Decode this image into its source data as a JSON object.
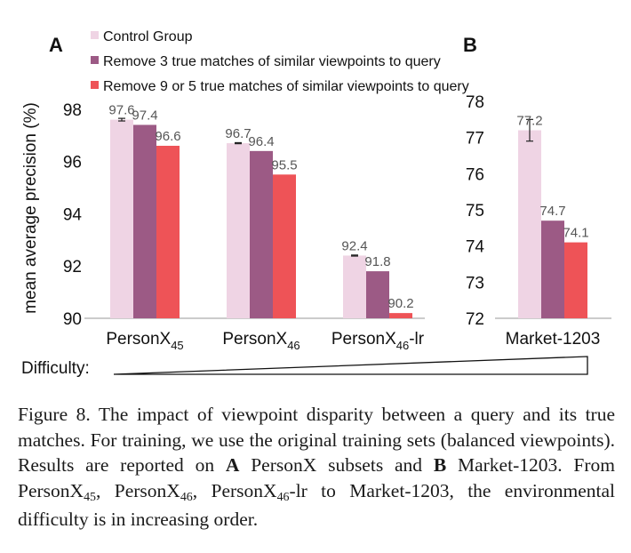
{
  "colors": {
    "control": "#efd4e4",
    "remove3": "#9c5a85",
    "remove9": "#ee5357",
    "axis": "#999999",
    "text": "#111111",
    "value_label": "#555555"
  },
  "legend": {
    "items": [
      "Control Group",
      "Remove 3 true matches of similar viewpoints to query",
      "Remove 9 or 5 true matches of similar viewpoints to query"
    ]
  },
  "y_axis_label": "mean average precision (%)",
  "difficulty_label": "Difficulty:",
  "chart_data": [
    {
      "type": "bar",
      "panel_label": "A",
      "categories": [
        {
          "base": "PersonX",
          "sub": "45",
          "suffix": ""
        },
        {
          "base": "PersonX",
          "sub": "46",
          "suffix": ""
        },
        {
          "base": "PersonX",
          "sub": "46",
          "suffix": "-lr"
        }
      ],
      "series": [
        {
          "name": "Control Group",
          "values": [
            97.6,
            96.7,
            92.4
          ],
          "labels": [
            "97.6",
            "96.7",
            "92.4"
          ],
          "err": [
            0.05,
            0.02,
            0.02
          ]
        },
        {
          "name": "Remove 3 true matches of similar viewpoints to query",
          "values": [
            97.4,
            96.4,
            91.8
          ],
          "labels": [
            "97.4",
            "96.4",
            "91.8"
          ]
        },
        {
          "name": "Remove 9 or 5 true matches of similar viewpoints to query",
          "values": [
            96.6,
            95.5,
            90.2
          ],
          "labels": [
            "96.6",
            "95.5",
            "90.2"
          ]
        }
      ],
      "ylim": [
        90,
        98.3
      ],
      "yticks": [
        "90",
        "92",
        "94",
        "96",
        "98"
      ]
    },
    {
      "type": "bar",
      "panel_label": "B",
      "categories": [
        {
          "base": "Market-1203",
          "sub": "",
          "suffix": ""
        }
      ],
      "series": [
        {
          "name": "Control Group",
          "values": [
            77.2
          ],
          "labels": [
            "77.2"
          ],
          "err": [
            0.3
          ]
        },
        {
          "name": "Remove 3 true matches of similar viewpoints to query",
          "values": [
            74.7
          ],
          "labels": [
            "74.7"
          ]
        },
        {
          "name": "Remove 9 or 5 true matches of similar viewpoints to query",
          "values": [
            74.1
          ],
          "labels": [
            "74.1"
          ]
        }
      ],
      "ylim": [
        72,
        78
      ],
      "yticks": [
        "72",
        "73",
        "74",
        "75",
        "76",
        "77",
        "78"
      ]
    }
  ],
  "caption": {
    "fig_label": "Figure 8.",
    "t1": " The impact of viewpoint disparity between a query and its true matches.  For training, we use the original training sets (balanced viewpoints). Results are reported on ",
    "b1": "A",
    "t2": " PersonX subsets and ",
    "b2": "B",
    "t3": " Market-1203.  From PersonX",
    "s1": "45",
    "t4": ", PersonX",
    "s2": "46",
    "t5": ", PersonX",
    "s3": "46",
    "t6": "-lr to Market-1203, the environmental difficulty is in increasing order."
  }
}
